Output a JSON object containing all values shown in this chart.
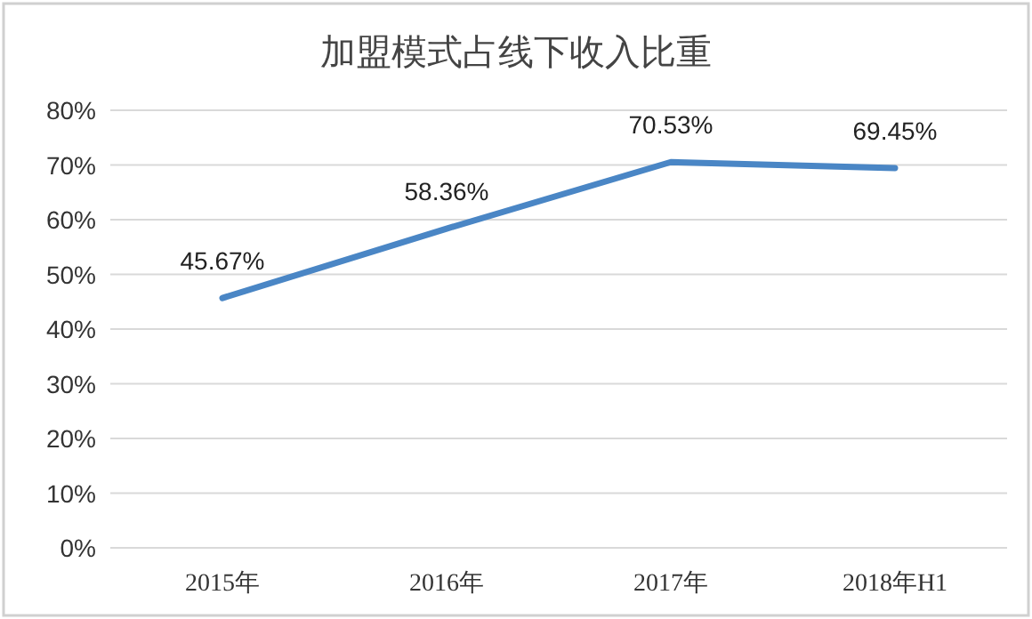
{
  "chart_data": {
    "type": "line",
    "title": "加盟模式占线下收入比重",
    "categories": [
      "2015年",
      "2016年",
      "2017年",
      "2018年H1"
    ],
    "values": [
      45.67,
      58.36,
      70.53,
      69.45
    ],
    "value_labels": [
      "45.67%",
      "58.36%",
      "70.53%",
      "69.45%"
    ],
    "color": "#4a86c5",
    "ylim": [
      0,
      80
    ],
    "yticks": [
      {
        "value": 0,
        "label": "0%"
      },
      {
        "value": 10,
        "label": "10%"
      },
      {
        "value": 20,
        "label": "20%"
      },
      {
        "value": 30,
        "label": "30%"
      },
      {
        "value": 40,
        "label": "40%"
      },
      {
        "value": 50,
        "label": "50%"
      },
      {
        "value": 60,
        "label": "60%"
      },
      {
        "value": 70,
        "label": "70%"
      },
      {
        "value": 80,
        "label": "80%"
      }
    ],
    "grid": "y"
  }
}
